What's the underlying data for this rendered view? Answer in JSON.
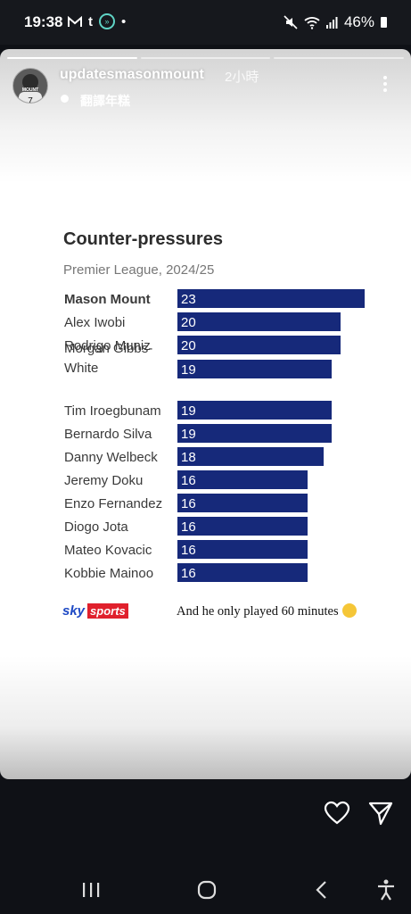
{
  "status_bar": {
    "time": "19:38",
    "left_icons": [
      "gmail-icon",
      "tumblr-icon",
      "app-ring-icon",
      "dot-icon"
    ],
    "tumblr_glyph": "t",
    "ring_glyph": "»",
    "dot_glyph": "•",
    "battery": "46%",
    "right_icons": [
      "mute-icon",
      "wifi-icon",
      "signal-icon",
      "battery-icon"
    ]
  },
  "story": {
    "username": "updatesmasonmount",
    "time_ago": "2小時",
    "music_title": "翻譯年糕",
    "avatar_text": "MOUNT",
    "progress_segments": 3,
    "progress_done": 1
  },
  "post": {
    "brand_sky": "sky",
    "brand_sports": "sports",
    "caption": "And he only played 60 minutes"
  },
  "chart_data": {
    "type": "bar",
    "orientation": "horizontal",
    "title": "Counter-pressures",
    "subtitle": "Premier League, 2024/25",
    "categories": [
      "Mason Mount",
      "Alex Iwobi",
      "Rodrigo Muniz",
      "Morgan Gibbs-White",
      "Tim Iroegbunam",
      "Bernardo Silva",
      "Danny Welbeck",
      "Jeremy Doku",
      "Enzo Fernandez",
      "Diogo Jota",
      "Mateo Kovacic",
      "Kobbie Mainoo"
    ],
    "values": [
      23,
      20,
      20,
      19,
      19,
      19,
      18,
      16,
      16,
      16,
      16,
      16
    ],
    "highlight": "Mason Mount",
    "bar_color": "#16297a",
    "label_color": "#3a3a3a",
    "xlim": [
      0,
      23
    ],
    "grid": false,
    "legend": "none"
  },
  "actions": {
    "like_icon": "heart-icon",
    "share_icon": "send-icon"
  },
  "nav": {
    "items": [
      "recents-icon",
      "home-icon",
      "back-icon",
      "accessibility-icon"
    ]
  }
}
